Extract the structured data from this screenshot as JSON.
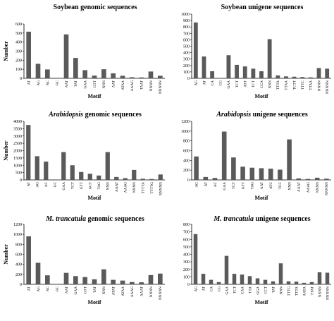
{
  "chart_data": [
    {
      "type": "bar",
      "title_italic": "",
      "title_rest": "Soybean genomic sequences",
      "xlabel": "Motif",
      "ylabel": "Number",
      "ylim": [
        0,
        600
      ],
      "yticks": [
        0,
        100,
        200,
        300,
        400,
        500,
        600
      ],
      "categories": [
        "AT",
        "AG",
        "AC",
        "GC",
        "AAT",
        "TAT",
        "GAA",
        "GTT",
        "NNN",
        "AAT",
        "ATAA",
        "AAAG",
        "TAAT",
        "NNNN",
        "NNNNN"
      ],
      "values": [
        515,
        160,
        98,
        0,
        485,
        225,
        90,
        30,
        100,
        55,
        28,
        12,
        10,
        75,
        28
      ]
    },
    {
      "type": "bar",
      "title_italic": "",
      "title_rest": "Soybean unigene sequences",
      "xlabel": "Motif",
      "ylabel": "",
      "ylim": [
        0,
        1000
      ],
      "yticks": [
        0,
        100,
        200,
        300,
        400,
        500,
        600,
        700,
        800,
        900,
        1000
      ],
      "categories": [
        "AG",
        "AT",
        "CA",
        "CG",
        "GAA",
        "TCT",
        "ATT",
        "TCT",
        "CCA",
        "NNN",
        "TTTA",
        "TTAA",
        "TCTT",
        "TTTC",
        "TTAA",
        "NNNN",
        "NNNNN"
      ],
      "values": [
        870,
        340,
        110,
        5,
        360,
        210,
        185,
        150,
        110,
        610,
        45,
        30,
        25,
        20,
        15,
        160,
        150
      ]
    },
    {
      "type": "bar",
      "title_italic": "Arabidopsis",
      "title_rest": " genomic sequences",
      "xlabel": "Motif",
      "ylabel": "Number",
      "ylim": [
        0,
        4000
      ],
      "yticks": [
        0,
        500,
        1000,
        1500,
        2000,
        2500,
        3000,
        3500,
        4000
      ],
      "categories": [
        "AT",
        "AG",
        "AC",
        "GC",
        "GAA",
        "TCT",
        "GTT",
        "ACT",
        "TAG",
        "NNN",
        "AAAT",
        "AAAG",
        "NNNN",
        "TTTTA",
        "TTTTG",
        "NNNNN"
      ],
      "values": [
        3750,
        1620,
        1250,
        0,
        1900,
        1000,
        540,
        420,
        300,
        1900,
        200,
        120,
        680,
        80,
        60,
        370
      ]
    },
    {
      "type": "bar",
      "title_italic": "Arabidopsis",
      "title_rest": " unigene sequences",
      "xlabel": "Motif",
      "ylabel": "",
      "ylim": [
        0,
        1200
      ],
      "yticks": [
        0,
        200,
        400,
        600,
        800,
        1000,
        1200
      ],
      "categories": [
        "AG",
        "AT",
        "AC",
        "GAA",
        "TCT",
        "GTT",
        "TAG",
        "AAT",
        "ATC",
        "TCC",
        "NNN",
        "AAAT",
        "AAAG",
        "NNNN",
        "NNNNN"
      ],
      "values": [
        480,
        60,
        40,
        990,
        460,
        270,
        250,
        240,
        230,
        210,
        830,
        30,
        20,
        45,
        25
      ]
    },
    {
      "type": "bar",
      "title_italic": "M. trancatula",
      "title_rest": " genomic sequences",
      "xlabel": "Motif",
      "ylabel": "Number",
      "ylim": [
        0,
        1200
      ],
      "yticks": [
        0,
        200,
        400,
        600,
        800,
        1000,
        1200
      ],
      "categories": [
        "AT",
        "AG",
        "AC",
        "GC",
        "AAT",
        "GAA",
        "GTT",
        "TAT",
        "NNN",
        "ATAT",
        "ATAA",
        "AAAG",
        "AAAT",
        "NNNN",
        "NNNNN"
      ],
      "values": [
        960,
        430,
        180,
        5,
        230,
        165,
        145,
        100,
        300,
        90,
        75,
        45,
        40,
        185,
        215
      ]
    },
    {
      "type": "bar",
      "title_italic": "M. trancatula",
      "title_rest": " unigene sequences",
      "xlabel": "Motif",
      "ylabel": "",
      "ylim": [
        0,
        800
      ],
      "yticks": [
        0,
        100,
        200,
        300,
        400,
        500,
        600,
        700,
        800
      ],
      "categories": [
        "AG",
        "AT",
        "CA",
        "CG",
        "GAA",
        "TCT",
        "CAA",
        "TTA",
        "GGA",
        "CCT",
        "TAT",
        "NNN",
        "TTTG",
        "TTTA",
        "AATA",
        "TTAT",
        "NNNN",
        "NNNNN"
      ],
      "values": [
        670,
        140,
        60,
        30,
        380,
        140,
        130,
        110,
        80,
        60,
        40,
        280,
        40,
        35,
        20,
        30,
        160,
        155
      ]
    }
  ]
}
